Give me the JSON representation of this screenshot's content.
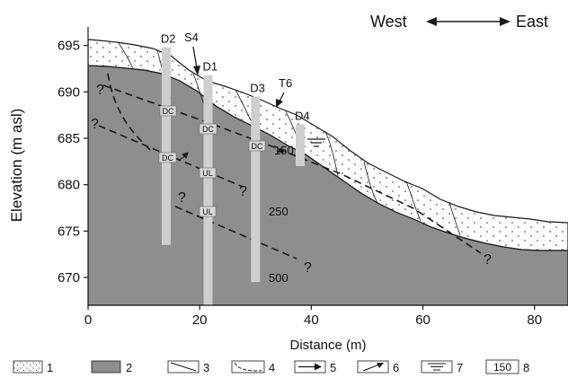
{
  "axes": {
    "xlabel": "Distance (m)",
    "ylabel": "Elevation (m asl)",
    "x_ticks": [
      "0",
      "20",
      "40",
      "60",
      "80"
    ],
    "y_ticks": [
      "695",
      "690",
      "685",
      "680",
      "675",
      "670"
    ],
    "xlim": [
      0,
      86
    ],
    "ylim": [
      667,
      697
    ]
  },
  "orientation": {
    "west": "West",
    "east": "East"
  },
  "boreholes": [
    {
      "id": "D2",
      "x_m": 14,
      "top_m": 694.8,
      "bottom_m": 673.5
    },
    {
      "id": "D1",
      "x_m": 21.5,
      "top_m": 691.8,
      "bottom_m": 667
    },
    {
      "id": "D3",
      "x_m": 30,
      "top_m": 689.5,
      "bottom_m": 669.5
    },
    {
      "id": "D4",
      "x_m": 38,
      "top_m": 686.5,
      "bottom_m": 682
    }
  ],
  "markers": [
    {
      "id": "S4"
    },
    {
      "id": "T6"
    }
  ],
  "borehole_tags": [
    "DC",
    "DC",
    "DC",
    "DC",
    "UL",
    "UL"
  ],
  "question_marks": [
    "?",
    "?",
    "?",
    "?",
    "?",
    "?",
    "?"
  ],
  "contour_labels": [
    "150",
    "250",
    "500"
  ],
  "legend": [
    {
      "key": "1",
      "symbol": "dots-icon"
    },
    {
      "key": "2",
      "symbol": "gray-fill-icon"
    },
    {
      "key": "3",
      "symbol": "solid-line-icon"
    },
    {
      "key": "4",
      "symbol": "dashed-line-icon"
    },
    {
      "key": "5",
      "symbol": "arrow-icon"
    },
    {
      "key": "6",
      "symbol": "slip-arrow-icon"
    },
    {
      "key": "7",
      "symbol": "water-table-icon"
    },
    {
      "key": "8",
      "symbol": "boxed-number-icon",
      "box_text": "150"
    }
  ],
  "colors": {
    "bedrock": "#8e8e8e",
    "cover": "#ffffff",
    "borehole": "#cfcfcf",
    "line": "#1a1a1a"
  }
}
